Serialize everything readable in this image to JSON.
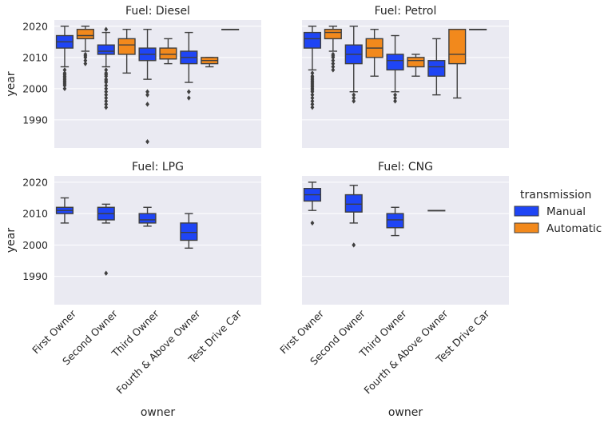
{
  "chart_data": {
    "type": "box",
    "layout": "facet-grid-2x2",
    "xlabel": "owner",
    "ylabel": "year",
    "ylim": [
      1981,
      2022
    ],
    "yticks": [
      1990,
      2000,
      2010,
      2020
    ],
    "categories": [
      "First Owner",
      "Second Owner",
      "Third Owner",
      "Fourth & Above Owner",
      "Test Drive Car"
    ],
    "legend": {
      "title": "transmission",
      "position": "right",
      "entries": [
        {
          "name": "Manual",
          "color": "#1f45f5"
        },
        {
          "name": "Automatic",
          "color": "#f2891c"
        }
      ]
    },
    "panels": [
      {
        "title": "Fuel: Diesel",
        "boxes": [
          {
            "category": "First Owner",
            "series": "Manual",
            "q1": 2013,
            "median": 2015,
            "q3": 2017,
            "whisker_low": 2007,
            "whisker_high": 2020,
            "outliers": [
              2006,
              2005,
              2004.5,
              2004,
              2003.5,
              2003,
              2002.5,
              2002,
              2001.5,
              2001,
              2000
            ]
          },
          {
            "category": "First Owner",
            "series": "Automatic",
            "q1": 2016,
            "median": 2017,
            "q3": 2019,
            "whisker_low": 2012,
            "whisker_high": 2020,
            "outliers": [
              2011,
              2010.5,
              2010,
              2009,
              2008
            ]
          },
          {
            "category": "Second Owner",
            "series": "Manual",
            "q1": 2011,
            "median": 2012,
            "q3": 2014,
            "whisker_low": 2007,
            "whisker_high": 2018,
            "outliers": [
              2006,
              2005,
              2004.5,
              2004,
              2003,
              2002.5,
              2002,
              2001,
              2000,
              1999,
              1998,
              1997,
              1996,
              1995,
              1994,
              2019
            ]
          },
          {
            "category": "Second Owner",
            "series": "Automatic",
            "q1": 2011,
            "median": 2014,
            "q3": 2016,
            "whisker_low": 2005,
            "whisker_high": 2019,
            "outliers": []
          },
          {
            "category": "Third Owner",
            "series": "Manual",
            "q1": 2009,
            "median": 2011,
            "q3": 2013,
            "whisker_low": 2003,
            "whisker_high": 2019,
            "outliers": [
              1999,
              1998,
              1995,
              1983
            ]
          },
          {
            "category": "Third Owner",
            "series": "Automatic",
            "q1": 2009.5,
            "median": 2011,
            "q3": 2013,
            "whisker_low": 2008,
            "whisker_high": 2016,
            "outliers": []
          },
          {
            "category": "Fourth & Above Owner",
            "series": "Manual",
            "q1": 2008,
            "median": 2010,
            "q3": 2012,
            "whisker_low": 2002,
            "whisker_high": 2018,
            "outliers": [
              1999,
              1997
            ]
          },
          {
            "category": "Fourth & Above Owner",
            "series": "Automatic",
            "q1": 2008,
            "median": 2009,
            "q3": 2010,
            "whisker_low": 2007,
            "whisker_high": 2010,
            "outliers": []
          },
          {
            "category": "Test Drive Car",
            "series": "Manual",
            "q1": 2019,
            "median": 2019,
            "q3": 2019,
            "whisker_low": 2019,
            "whisker_high": 2019,
            "outliers": []
          }
        ]
      },
      {
        "title": "Fuel: Petrol",
        "boxes": [
          {
            "category": "First Owner",
            "series": "Manual",
            "q1": 2013,
            "median": 2016,
            "q3": 2018,
            "whisker_low": 2006,
            "whisker_high": 2020,
            "outliers": [
              2005,
              2004,
              2003.5,
              2003,
              2002.5,
              2002,
              2001.5,
              2001,
              2000.5,
              2000,
              1999.5,
              1999,
              1998,
              1997,
              1996,
              1995,
              1994
            ]
          },
          {
            "category": "First Owner",
            "series": "Automatic",
            "q1": 2016,
            "median": 2018,
            "q3": 2019,
            "whisker_low": 2012,
            "whisker_high": 2020,
            "outliers": [
              2011,
              2010.5,
              2010,
              2009,
              2008,
              2007,
              2006
            ]
          },
          {
            "category": "Second Owner",
            "series": "Manual",
            "q1": 2008,
            "median": 2011,
            "q3": 2014,
            "whisker_low": 1999,
            "whisker_high": 2020,
            "outliers": [
              1998,
              1997,
              1996
            ]
          },
          {
            "category": "Second Owner",
            "series": "Automatic",
            "q1": 2010,
            "median": 2013,
            "q3": 2016,
            "whisker_low": 2004,
            "whisker_high": 2019,
            "outliers": []
          },
          {
            "category": "Third Owner",
            "series": "Manual",
            "q1": 2006,
            "median": 2009,
            "q3": 2011,
            "whisker_low": 1999,
            "whisker_high": 2017,
            "outliers": [
              1998,
              1997,
              1996
            ]
          },
          {
            "category": "Third Owner",
            "series": "Automatic",
            "q1": 2007,
            "median": 2009,
            "q3": 2010,
            "whisker_low": 2004,
            "whisker_high": 2011,
            "outliers": []
          },
          {
            "category": "Fourth & Above Owner",
            "series": "Manual",
            "q1": 2004,
            "median": 2007,
            "q3": 2009,
            "whisker_low": 1998,
            "whisker_high": 2016,
            "outliers": []
          },
          {
            "category": "Fourth & Above Owner",
            "series": "Automatic",
            "q1": 2008,
            "median": 2011,
            "q3": 2019,
            "whisker_low": 1997,
            "whisker_high": 2019,
            "outliers": []
          },
          {
            "category": "Test Drive Car",
            "series": "Manual",
            "q1": 2019,
            "median": 2019,
            "q3": 2019,
            "whisker_low": 2019,
            "whisker_high": 2019,
            "outliers": []
          }
        ]
      },
      {
        "title": "Fuel: LPG",
        "boxes": [
          {
            "category": "First Owner",
            "series": "Manual",
            "q1": 2010,
            "median": 2011,
            "q3": 2012,
            "whisker_low": 2007,
            "whisker_high": 2015,
            "outliers": []
          },
          {
            "category": "Second Owner",
            "series": "Manual",
            "q1": 2008,
            "median": 2010,
            "q3": 2012,
            "whisker_low": 2007,
            "whisker_high": 2013,
            "outliers": [
              1991
            ]
          },
          {
            "category": "Third Owner",
            "series": "Manual",
            "q1": 2007,
            "median": 2008,
            "q3": 2010,
            "whisker_low": 2006,
            "whisker_high": 2012,
            "outliers": []
          },
          {
            "category": "Fourth & Above Owner",
            "series": "Manual",
            "q1": 2001.5,
            "median": 2004,
            "q3": 2007,
            "whisker_low": 1999,
            "whisker_high": 2010,
            "outliers": []
          }
        ]
      },
      {
        "title": "Fuel: CNG",
        "boxes": [
          {
            "category": "First Owner",
            "series": "Manual",
            "q1": 2014,
            "median": 2016,
            "q3": 2018,
            "whisker_low": 2011,
            "whisker_high": 2020,
            "outliers": [
              2007
            ]
          },
          {
            "category": "Second Owner",
            "series": "Manual",
            "q1": 2010.5,
            "median": 2013,
            "q3": 2016,
            "whisker_low": 2007,
            "whisker_high": 2019,
            "outliers": [
              2000
            ]
          },
          {
            "category": "Third Owner",
            "series": "Manual",
            "q1": 2005.5,
            "median": 2008,
            "q3": 2010,
            "whisker_low": 2003,
            "whisker_high": 2012,
            "outliers": []
          },
          {
            "category": "Fourth & Above Owner",
            "series": "Manual",
            "q1": 2011,
            "median": 2011,
            "q3": 2011,
            "whisker_low": 2011,
            "whisker_high": 2011,
            "outliers": []
          }
        ]
      }
    ]
  }
}
